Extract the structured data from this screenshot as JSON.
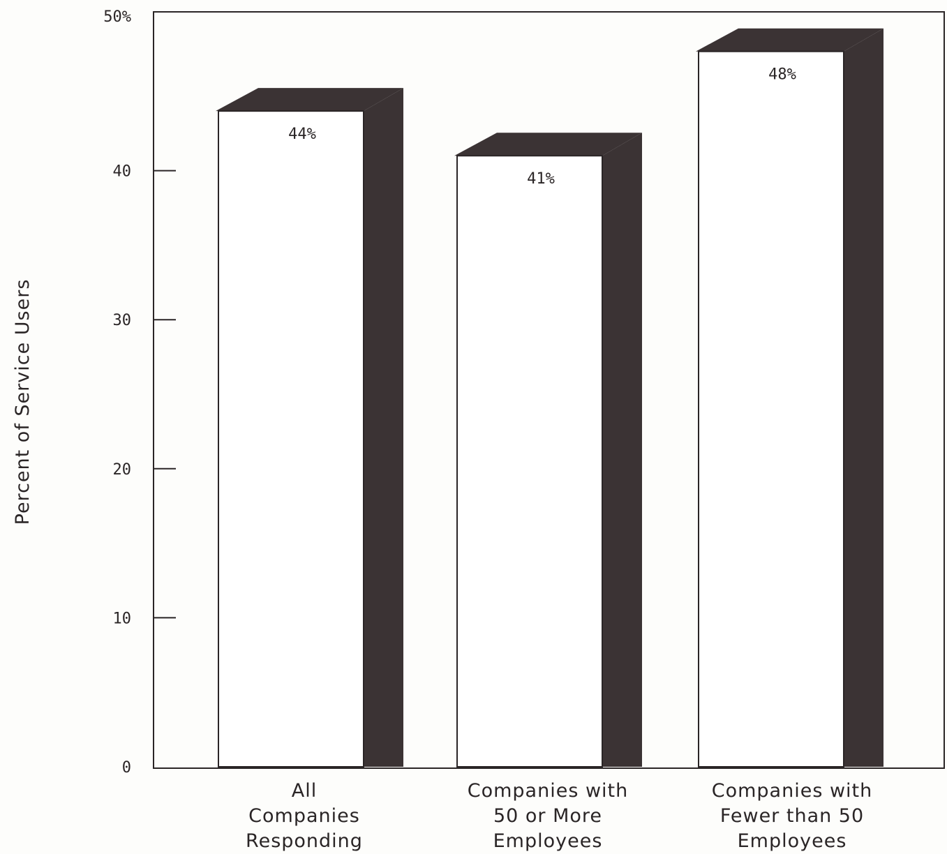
{
  "chart_data": {
    "type": "bar",
    "ylabel": "Percent of Service Users",
    "ylim": [
      0,
      50
    ],
    "yticks": [
      {
        "value": 0,
        "label": "0"
      },
      {
        "value": 10,
        "label": "10"
      },
      {
        "value": 20,
        "label": "20"
      },
      {
        "value": 30,
        "label": "30"
      },
      {
        "value": 40,
        "label": "40"
      },
      {
        "value": 50,
        "label": "50%"
      }
    ],
    "categories": [
      [
        "All",
        "Companies",
        "Responding"
      ],
      [
        "Companies with",
        "50 or More",
        "Employees"
      ],
      [
        "Companies with",
        "Fewer than 50",
        "Employees"
      ]
    ],
    "values": [
      44,
      41,
      48
    ],
    "data_labels": [
      "44%",
      "41%",
      "48%"
    ],
    "grid": false,
    "style": "3d-extruded",
    "colors": {
      "bar_face": "#ffffff",
      "bar_side": "#3b3334",
      "axis": "#2a2526"
    }
  }
}
